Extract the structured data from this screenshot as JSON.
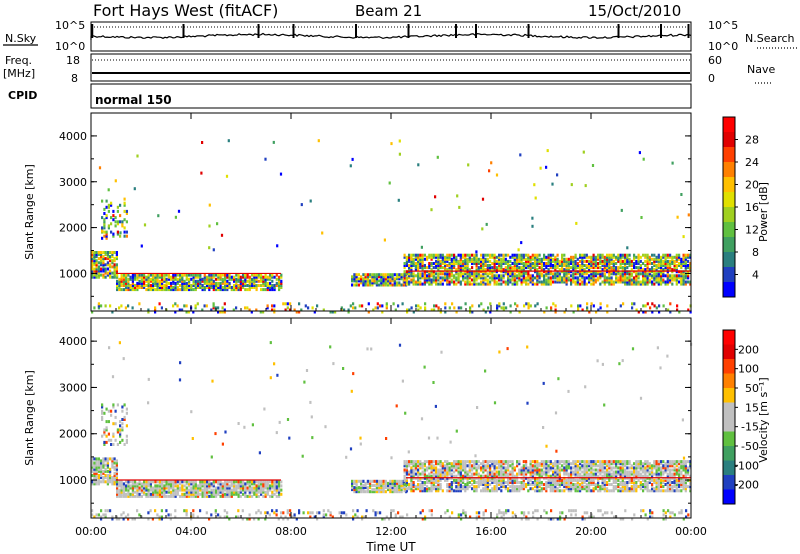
{
  "header": {
    "title": "Fort Hays West (fitACF)",
    "beam": "Beam 21",
    "date": "15/Oct/2010"
  },
  "strips": {
    "nsky_label": "N.Sky",
    "nsky_ticks": [
      "10^5",
      "10^0"
    ],
    "nsearch_label": "N.Search",
    "nsearch_ticks": [
      "10^5",
      "10^0"
    ],
    "freq_label_1": "Freq.",
    "freq_label_2": "[MHz]",
    "freq_ticks": [
      "18",
      "8"
    ],
    "nave_label": "Nave",
    "nave_ticks": [
      "60",
      "0"
    ],
    "cpid_label": "CPID",
    "cpid_value": "normal 150"
  },
  "chart_data": [
    {
      "type": "heatmap",
      "panel": "power",
      "ylabel": "Slant Range [km]",
      "xlabel": "Time UT",
      "x_ticks": [
        "00:00",
        "04:00",
        "08:00",
        "12:00",
        "16:00",
        "20:00",
        "00:00"
      ],
      "x_range_hours": [
        0,
        24
      ],
      "y_ticks": [
        1000,
        2000,
        3000,
        4000
      ],
      "ylim": [
        180,
        4500
      ],
      "colorbar": {
        "label": "Power [dB]",
        "ticks": [
          "28",
          "24",
          "20",
          "16",
          "12",
          "8",
          "4"
        ],
        "colors": [
          "#0000ff",
          "#2040c0",
          "#2a7f7f",
          "#40a060",
          "#60c040",
          "#a0d020",
          "#e0e000",
          "#ffc000",
          "#ff8000",
          "#ff4000",
          "#e00000",
          "#ff0000"
        ]
      },
      "bands": [
        {
          "t": [
            0.0,
            1.0
          ],
          "r": [
            1000,
            1500
          ],
          "level": "mixed"
        },
        {
          "t": [
            1.0,
            7.5
          ],
          "r": [
            700,
            1000
          ],
          "level": "mixed"
        },
        {
          "t": [
            10.5,
            12.5
          ],
          "r": [
            800,
            1050
          ],
          "level": "mixed"
        },
        {
          "t": [
            12.5,
            24.0
          ],
          "r": [
            800,
            1500
          ],
          "level": "mixed"
        }
      ]
    },
    {
      "type": "heatmap",
      "panel": "velocity",
      "ylabel": "Slant Range [km]",
      "xlabel": "Time UT",
      "x_ticks": [
        "00:00",
        "04:00",
        "08:00",
        "12:00",
        "16:00",
        "20:00",
        "00:00"
      ],
      "x_range_hours": [
        0,
        24
      ],
      "y_ticks": [
        1000,
        2000,
        3000,
        4000
      ],
      "ylim": [
        180,
        4500
      ],
      "colorbar": {
        "label": "Velocity [m s⁻¹]",
        "ticks": [
          "200",
          "100",
          "50",
          "15",
          "-15",
          "-50",
          "-100",
          "-200"
        ],
        "colors": [
          "#0000ff",
          "#2040c0",
          "#2a7f7f",
          "#40a060",
          "#60c040",
          "#c0c0c0",
          "#c0c0c0",
          "#ffc000",
          "#ff8000",
          "#ff4000",
          "#e00000",
          "#ff0000"
        ]
      }
    }
  ]
}
